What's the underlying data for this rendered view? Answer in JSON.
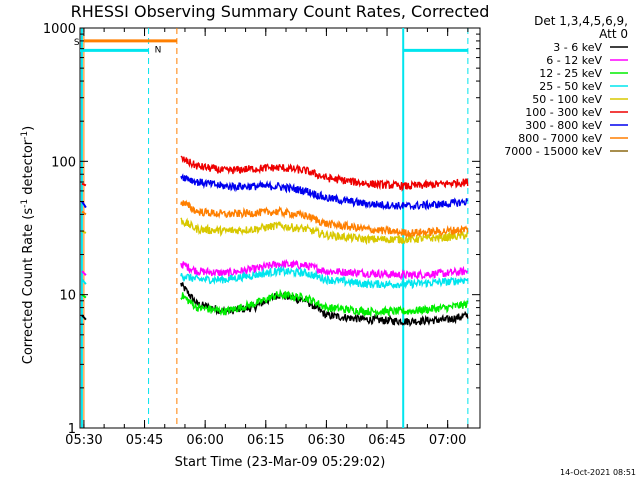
{
  "chart_data": {
    "type": "line",
    "title": "RHESSI Observing Summary Count Rates, Corrected",
    "xlabel": "Start Time (23-Mar-09 05:29:02)",
    "ylabel": "Corrected Count Rate (s",
    "ylabel_sup1": "-1",
    "ylabel_mid": " detector",
    "ylabel_sup2": "-1",
    "ylabel_end": ")",
    "footer": "14-Oct-2021 08:51",
    "y_scale": "log",
    "ylim": [
      1,
      1000
    ],
    "xlim_minutes": [
      "05:29:02",
      "07:08:00"
    ],
    "x_ticks": [
      "05:30",
      "05:45",
      "06:00",
      "06:15",
      "06:30",
      "06:45",
      "07:00"
    ],
    "y_ticks": [
      "1",
      "10",
      "100",
      "1000"
    ],
    "legend": {
      "placement": "right",
      "header_line1": "Det 1,3,4,5,6,9,",
      "header_line2": "Att 0",
      "entries": [
        {
          "label": "3 - 6 keV",
          "color": "#000000"
        },
        {
          "label": "6 - 12 keV",
          "color": "#ff00ff"
        },
        {
          "label": "12 - 25 keV",
          "color": "#00ee00"
        },
        {
          "label": "25 - 50 keV",
          "color": "#00e5ee"
        },
        {
          "label": "50 - 100 keV",
          "color": "#d8c800"
        },
        {
          "label": "100 - 300 keV",
          "color": "#ee0000"
        },
        {
          "label": "300 - 800 keV",
          "color": "#0000ee"
        },
        {
          "label": "800 - 7000 keV",
          "color": "#ff7f00"
        },
        {
          "label": "7000 - 15000 keV",
          "color": "#8b6914"
        }
      ]
    },
    "series": [
      {
        "name": "3 - 6 keV",
        "color": "#000000",
        "early": [
          7,
          6.5
        ],
        "points": [
          [
            "05:54",
            12
          ],
          [
            "05:58",
            8.5
          ],
          [
            "06:05",
            7.5
          ],
          [
            "06:12",
            8
          ],
          [
            "06:18",
            10
          ],
          [
            "06:25",
            9
          ],
          [
            "06:30",
            7
          ],
          [
            "06:40",
            6.5
          ],
          [
            "06:50",
            6.3
          ],
          [
            "07:00",
            6.5
          ],
          [
            "07:05",
            7
          ]
        ]
      },
      {
        "name": "6 - 12 keV",
        "color": "#ff00ff",
        "early": [
          15,
          14
        ],
        "points": [
          [
            "05:54",
            17
          ],
          [
            "05:58",
            15
          ],
          [
            "06:05",
            14.5
          ],
          [
            "06:12",
            15.5
          ],
          [
            "06:18",
            17
          ],
          [
            "06:25",
            16.5
          ],
          [
            "06:30",
            15
          ],
          [
            "06:40",
            14.5
          ],
          [
            "06:50",
            14
          ],
          [
            "07:00",
            14.5
          ],
          [
            "07:05",
            15
          ]
        ]
      },
      {
        "name": "12 - 25 keV",
        "color": "#00ee00",
        "early": [
          10,
          9.5
        ],
        "points": [
          [
            "05:54",
            10
          ],
          [
            "05:58",
            8
          ],
          [
            "06:05",
            7.5
          ],
          [
            "06:12",
            8.5
          ],
          [
            "06:18",
            10
          ],
          [
            "06:25",
            9.5
          ],
          [
            "06:30",
            8
          ],
          [
            "06:40",
            7.5
          ],
          [
            "06:50",
            7.5
          ],
          [
            "07:00",
            8
          ],
          [
            "07:05",
            8.5
          ]
        ]
      },
      {
        "name": "25 - 50 keV",
        "color": "#00e5ee",
        "early": [
          13,
          12
        ],
        "points": [
          [
            "05:54",
            14
          ],
          [
            "05:58",
            13
          ],
          [
            "06:05",
            13
          ],
          [
            "06:12",
            14
          ],
          [
            "06:18",
            15
          ],
          [
            "06:25",
            14.5
          ],
          [
            "06:30",
            13
          ],
          [
            "06:40",
            12
          ],
          [
            "06:50",
            12
          ],
          [
            "07:00",
            12.5
          ],
          [
            "07:05",
            13
          ]
        ]
      },
      {
        "name": "50 - 100 keV",
        "color": "#d8c800",
        "early": [
          30,
          29
        ],
        "points": [
          [
            "05:54",
            36
          ],
          [
            "05:58",
            31
          ],
          [
            "06:05",
            30
          ],
          [
            "06:12",
            31
          ],
          [
            "06:18",
            33
          ],
          [
            "06:25",
            31
          ],
          [
            "06:30",
            28
          ],
          [
            "06:40",
            26
          ],
          [
            "06:50",
            26
          ],
          [
            "07:00",
            27
          ],
          [
            "07:05",
            28
          ]
        ]
      },
      {
        "name": "100 - 300 keV",
        "color": "#ee0000",
        "early": [
          68,
          66
        ],
        "points": [
          [
            "05:54",
            105
          ],
          [
            "05:58",
            92
          ],
          [
            "06:05",
            85
          ],
          [
            "06:12",
            88
          ],
          [
            "06:18",
            90
          ],
          [
            "06:25",
            85
          ],
          [
            "06:30",
            75
          ],
          [
            "06:40",
            68
          ],
          [
            "06:50",
            65
          ],
          [
            "07:00",
            68
          ],
          [
            "07:05",
            70
          ]
        ]
      },
      {
        "name": "300 - 800 keV",
        "color": "#0000ee",
        "early": [
          50,
          45
        ],
        "points": [
          [
            "05:54",
            78
          ],
          [
            "05:58",
            70
          ],
          [
            "06:05",
            65
          ],
          [
            "06:12",
            65
          ],
          [
            "06:18",
            65
          ],
          [
            "06:25",
            60
          ],
          [
            "06:30",
            53
          ],
          [
            "06:40",
            48
          ],
          [
            "06:50",
            46
          ],
          [
            "07:00",
            48
          ],
          [
            "07:05",
            50
          ]
        ]
      },
      {
        "name": "800 - 7000 keV",
        "color": "#ff7f00",
        "early": [
          42,
          40
        ],
        "points": [
          [
            "05:54",
            50
          ],
          [
            "05:58",
            42
          ],
          [
            "06:05",
            40
          ],
          [
            "06:12",
            41
          ],
          [
            "06:18",
            42
          ],
          [
            "06:25",
            39
          ],
          [
            "06:30",
            34
          ],
          [
            "06:40",
            31
          ],
          [
            "06:50",
            29
          ],
          [
            "07:00",
            30
          ],
          [
            "07:05",
            31
          ]
        ]
      },
      {
        "name": "7000 - 15000 keV",
        "color": "#8b6914",
        "early": [],
        "points": []
      }
    ],
    "flags": {
      "saa_label": "S",
      "night_label": "N",
      "saa_color": "#ff7f00",
      "night_color": "#00e5ee",
      "saa_bar": {
        "start": "05:30:00",
        "end": "05:53:00",
        "level": 800
      },
      "night_bars": [
        {
          "start": "05:29:02",
          "end": "05:46:00",
          "level": 680
        },
        {
          "start": "06:49:00",
          "end": "07:05:00",
          "level": 680
        }
      ],
      "saa_edges": [
        "05:30:00",
        "05:53:00"
      ],
      "night_edges": [
        "05:29:30",
        "05:46:00",
        "06:49:00",
        "07:05:00"
      ]
    }
  }
}
